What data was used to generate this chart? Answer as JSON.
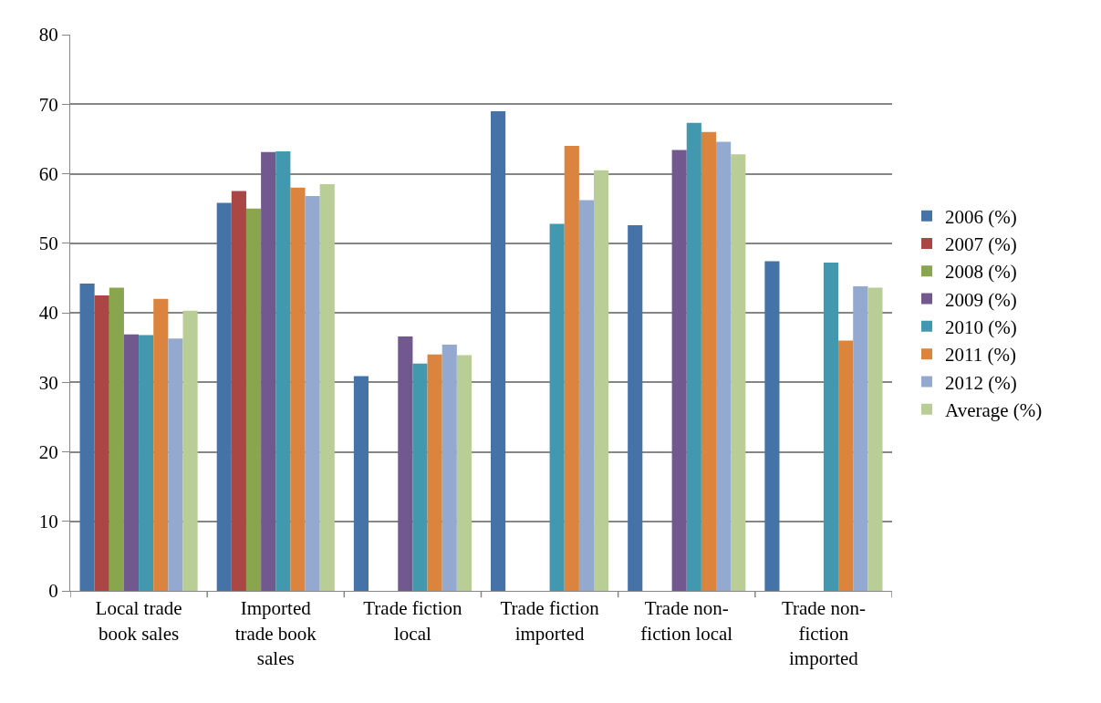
{
  "chart_data": {
    "type": "bar",
    "categories": [
      "Local trade book sales",
      "Imported trade book sales",
      "Trade fiction local",
      "Trade fiction imported",
      "Trade non-fiction local",
      "Trade non-fiction imported"
    ],
    "series": [
      {
        "name": "2006 (%)",
        "color": "#4572a7",
        "values": [
          44.2,
          55.8,
          30.9,
          69.0,
          52.6,
          47.4
        ]
      },
      {
        "name": "2007 (%)",
        "color": "#aa4643",
        "values": [
          42.5,
          57.5,
          null,
          null,
          null,
          null
        ]
      },
      {
        "name": "2008 (%)",
        "color": "#89a54e",
        "values": [
          43.6,
          55.0,
          null,
          null,
          null,
          null
        ]
      },
      {
        "name": "2009 (%)",
        "color": "#71588f",
        "values": [
          36.9,
          63.1,
          36.6,
          null,
          63.4,
          null
        ]
      },
      {
        "name": "2010 (%)",
        "color": "#4198af",
        "values": [
          36.8,
          63.2,
          32.7,
          52.8,
          67.3,
          47.2
        ]
      },
      {
        "name": "2011 (%)",
        "color": "#db843d",
        "values": [
          42.0,
          58.0,
          34.0,
          64.0,
          66.0,
          36.0
        ]
      },
      {
        "name": "2012 (%)",
        "color": "#93a9cf",
        "values": [
          36.3,
          56.8,
          35.4,
          56.2,
          64.6,
          43.8
        ]
      },
      {
        "name": "Average (%)",
        "color": "#b9cd96",
        "values": [
          40.3,
          58.5,
          33.9,
          60.5,
          62.8,
          43.6
        ]
      }
    ],
    "ylim": [
      0,
      80
    ],
    "yticks": [
      0,
      10,
      20,
      30,
      40,
      50,
      60,
      70,
      80
    ],
    "grid": "y",
    "legend": "right"
  }
}
